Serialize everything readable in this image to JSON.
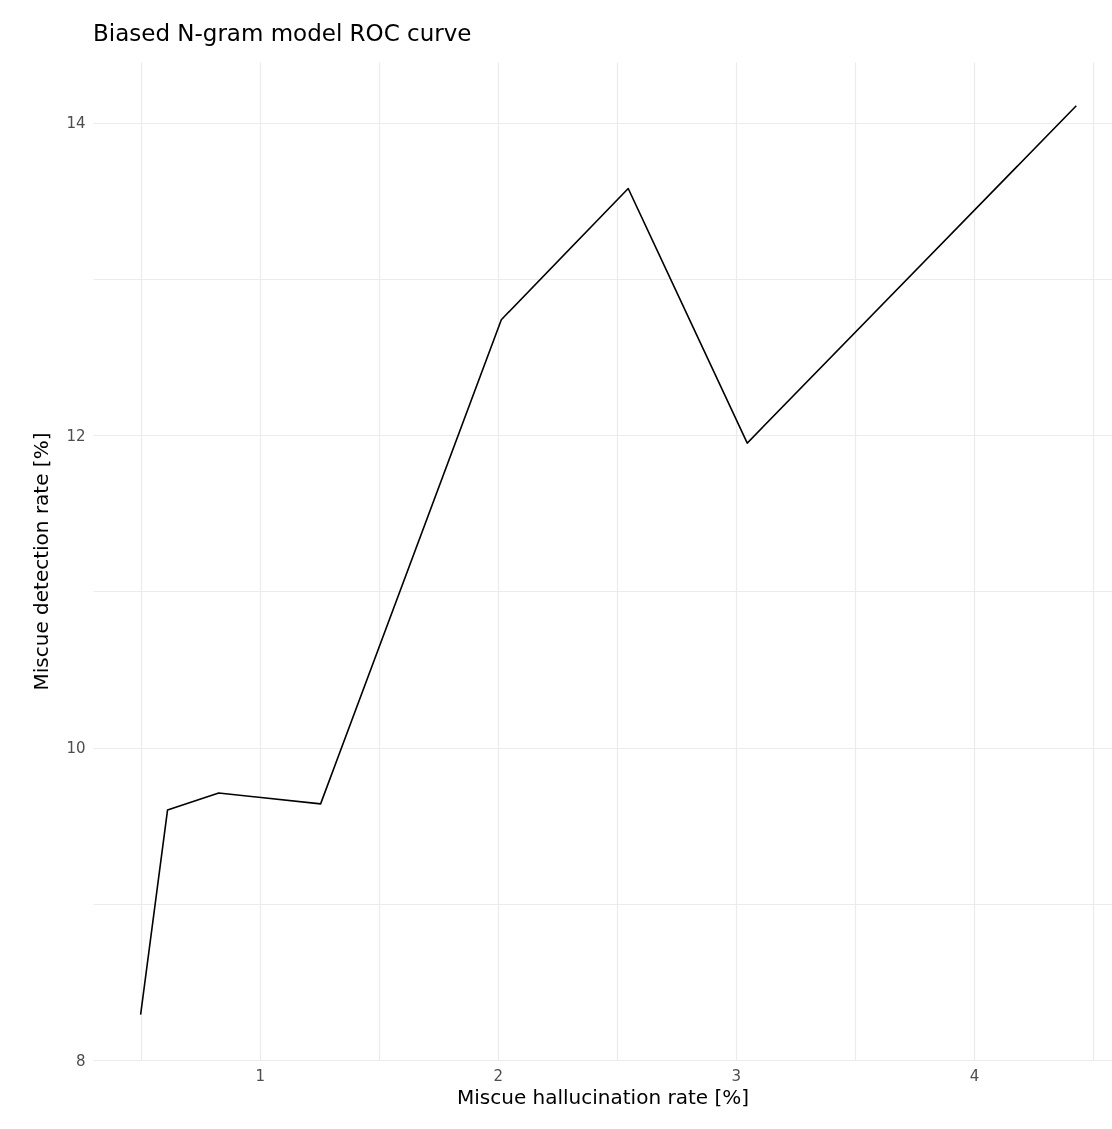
{
  "chart_data": {
    "type": "line",
    "title": "Biased N-gram model ROC curve",
    "xlabel": "Miscue hallucination rate [%]",
    "ylabel": "Miscue detection rate [%]",
    "x": [
      0.5,
      0.613,
      0.828,
      1.256,
      2.015,
      2.548,
      3.048,
      4.43
    ],
    "series": [
      {
        "color": "#000000",
        "values": [
          8.29,
          9.6,
          9.71,
          9.64,
          12.74,
          13.58,
          11.95,
          14.11
        ]
      }
    ],
    "xlim": [
      0.3,
      4.58
    ],
    "xticks": [
      {
        "value": 0.5,
        "label": null
      },
      1,
      {
        "value": 1.5,
        "label": null
      },
      2,
      {
        "value": 2.5,
        "label": null
      },
      3,
      {
        "value": 3.5,
        "label": null
      },
      4,
      {
        "value": 4.5,
        "label": null
      }
    ],
    "ylim": [
      8,
      14.39
    ],
    "yticks": [
      8,
      {
        "value": 9,
        "label": null
      },
      10,
      {
        "value": 11,
        "label": null
      },
      12,
      {
        "value": 13,
        "label": null
      },
      14
    ],
    "grid": true,
    "marker": "none",
    "line_style": "solid"
  }
}
